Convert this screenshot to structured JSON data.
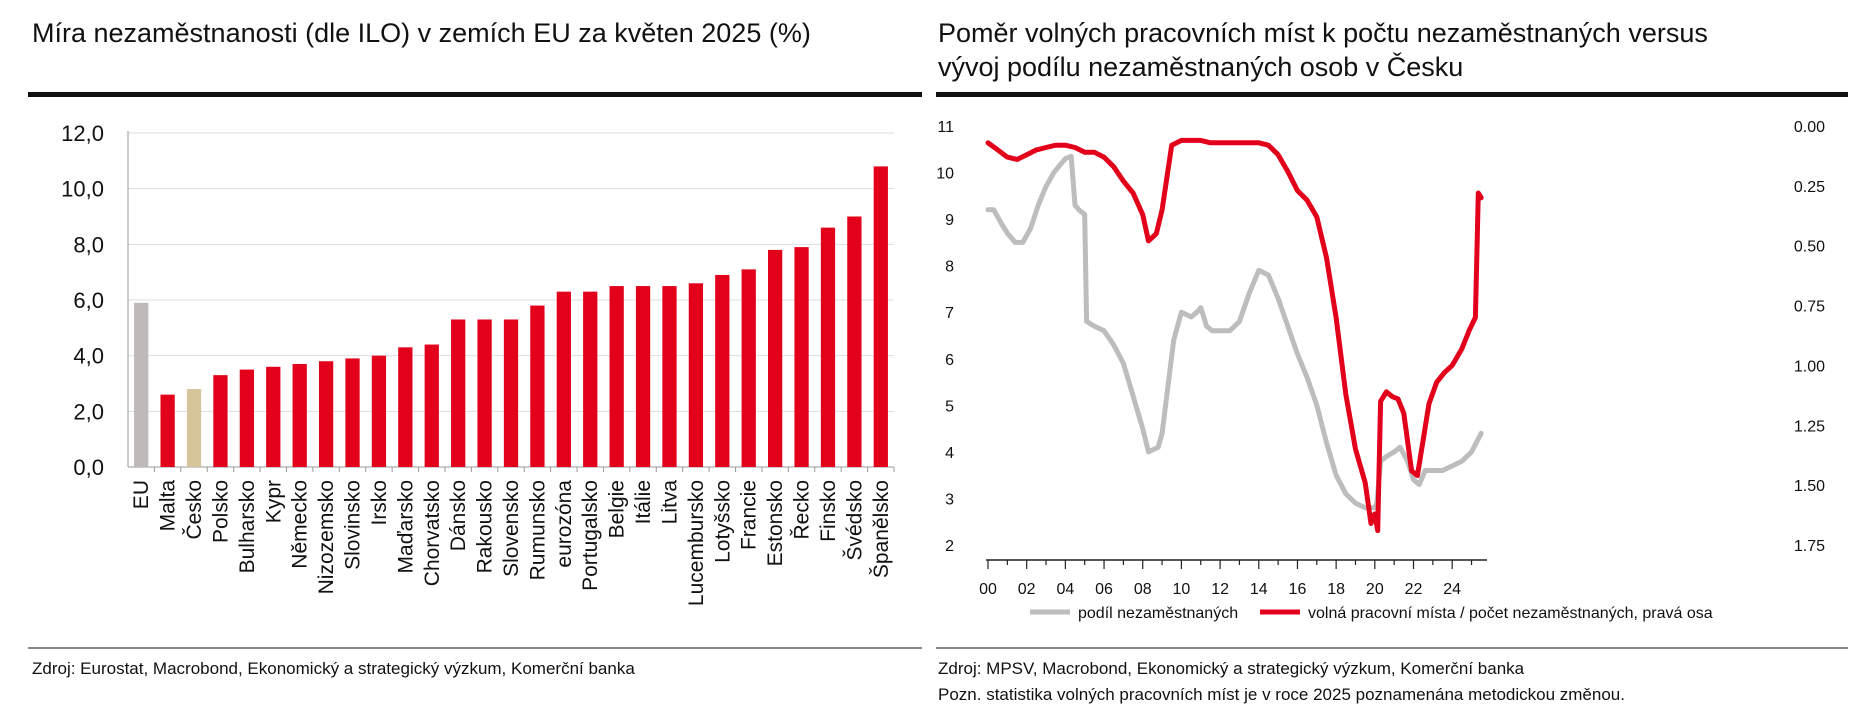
{
  "left": {
    "title": "Míra  nezaměstnanosti (dle ILO) v zemích EU za květen 2025 (%)",
    "source": "Zdroj: Eurostat, Macrobond, Ekonomický a strategický výzkum, Komerční banka",
    "colors": {
      "default": "#E3001B",
      "eu": "#BFB9BA",
      "czech": "#D6C49A"
    }
  },
  "right": {
    "title_line1": "Poměr volných pracovních míst k počtu nezaměstnaných versus",
    "title_line2": "vývoj podílu nezaměstnaných osob v Česku",
    "source": "Zdroj: MPSV, Macrobond, Ekonomický a strategický výzkum, Komerční banka",
    "note": "Pozn. statistika volných pracovních míst je v roce 2025 poznamenána metodickou změnou.",
    "colors": {
      "gray": "#BDBDBD",
      "red": "#E3001B"
    }
  },
  "chart_data": [
    {
      "type": "bar",
      "title": "Míra  nezaměstnanosti (dle ILO) v zemích EU za květen 2025 (%)",
      "xlabel": "",
      "ylabel": "",
      "ylim": [
        0,
        12
      ],
      "y_ticks": [
        "0,0",
        "2,0",
        "4,0",
        "6,0",
        "8,0",
        "10,0",
        "12,0"
      ],
      "grid": true,
      "categories": [
        "EU",
        "Malta",
        "Česko",
        "Polsko",
        "Bulharsko",
        "Kypr",
        "Německo",
        "Nizozemsko",
        "Slovinsko",
        "Irsko",
        "Maďarsko",
        "Chorvatsko",
        "Dánsko",
        "Rakousko",
        "Slovensko",
        "Rumunsko",
        "eurozóna",
        "Portugalsko",
        "Belgie",
        "Itálie",
        "Litva",
        "Lucembursko",
        "Lotyšsko",
        "Francie",
        "Estonsko",
        "Řecko",
        "Finsko",
        "Švédsko",
        "Španělsko"
      ],
      "values": [
        5.9,
        2.6,
        2.8,
        3.3,
        3.5,
        3.6,
        3.7,
        3.8,
        3.9,
        4.0,
        4.3,
        4.4,
        5.3,
        5.3,
        5.3,
        5.8,
        6.3,
        6.3,
        6.5,
        6.5,
        6.5,
        6.6,
        6.9,
        7.1,
        7.8,
        7.9,
        8.6,
        9.0,
        10.8
      ]
    },
    {
      "type": "line",
      "title": "Poměr volných pracovních míst k počtu nezaměstnaných versus vývoj podílu nezaměstnaných osob v Česku",
      "x_ticks": [
        "00",
        "02",
        "04",
        "06",
        "08",
        "10",
        "12",
        "14",
        "16",
        "18",
        "20",
        "22",
        "24"
      ],
      "x_range": [
        2000,
        2025.8
      ],
      "left_axis": {
        "ylim": [
          2,
          11
        ],
        "ticks": [
          "2",
          "3",
          "4",
          "5",
          "6",
          "7",
          "8",
          "9",
          "10",
          "11"
        ]
      },
      "right_axis": {
        "ylim": [
          1.75,
          0.0
        ],
        "inverted": true,
        "ticks": [
          "0.00",
          "0.25",
          "0.50",
          "0.75",
          "1.00",
          "1.25",
          "1.50",
          "1.75"
        ]
      },
      "legend_placement": "bottom",
      "series": [
        {
          "name": "podíl nezaměstnaných",
          "axis": "left",
          "color": "#BDBDBD",
          "x": [
            2000.0,
            2000.3,
            2000.7,
            2001.0,
            2001.4,
            2001.8,
            2002.2,
            2002.6,
            2003.0,
            2003.4,
            2003.8,
            2004.0,
            2004.3,
            2004.5,
            2004.7,
            2005.0,
            2005.1,
            2005.5,
            2006.0,
            2006.5,
            2007.0,
            2007.5,
            2008.0,
            2008.3,
            2008.8,
            2009.0,
            2009.3,
            2009.6,
            2010.0,
            2010.5,
            2010.8,
            2011.0,
            2011.3,
            2011.6,
            2012.0,
            2012.5,
            2013.0,
            2013.5,
            2014.0,
            2014.5,
            2015.0,
            2015.5,
            2016.0,
            2016.5,
            2017.0,
            2017.5,
            2018.0,
            2018.5,
            2019.0,
            2019.5,
            2020.0,
            2020.1,
            2020.3,
            2020.6,
            2021.0,
            2021.3,
            2021.7,
            2022.0,
            2022.3,
            2022.6,
            2023.0,
            2023.5,
            2024.0,
            2024.5,
            2025.0,
            2025.5
          ],
          "values": [
            9.2,
            9.2,
            8.9,
            8.7,
            8.5,
            8.5,
            8.8,
            9.3,
            9.7,
            10.0,
            10.2,
            10.3,
            10.35,
            9.3,
            9.2,
            9.1,
            6.8,
            6.7,
            6.6,
            6.3,
            5.9,
            5.2,
            4.5,
            4.0,
            4.1,
            4.4,
            5.4,
            6.4,
            7.0,
            6.9,
            7.0,
            7.1,
            6.7,
            6.6,
            6.6,
            6.6,
            6.8,
            7.4,
            7.9,
            7.8,
            7.3,
            6.7,
            6.1,
            5.6,
            5.0,
            4.2,
            3.5,
            3.1,
            2.9,
            2.8,
            2.8,
            2.9,
            3.8,
            3.9,
            4.0,
            4.1,
            3.8,
            3.4,
            3.3,
            3.6,
            3.6,
            3.6,
            3.7,
            3.8,
            4.0,
            4.4
          ]
        },
        {
          "name": "volná pracovní místa / počet nezaměstnaných, pravá osa",
          "axis": "right",
          "color": "#E3001B",
          "x": [
            2000.0,
            2000.5,
            2001.0,
            2001.5,
            2002.0,
            2002.5,
            2003.0,
            2003.5,
            2004.0,
            2004.5,
            2005.0,
            2005.5,
            2006.0,
            2006.5,
            2007.0,
            2007.5,
            2008.0,
            2008.3,
            2008.7,
            2009.0,
            2009.5,
            2010.0,
            2010.5,
            2011.0,
            2011.5,
            2012.0,
            2012.5,
            2013.0,
            2013.5,
            2014.0,
            2014.5,
            2015.0,
            2015.5,
            2016.0,
            2016.5,
            2017.0,
            2017.5,
            2018.0,
            2018.5,
            2019.0,
            2019.5,
            2019.8,
            2020.0,
            2020.15,
            2020.3,
            2020.6,
            2020.9,
            2021.2,
            2021.5,
            2021.9,
            2022.2,
            2022.5,
            2022.8,
            2023.2,
            2023.6,
            2024.0,
            2024.5,
            2024.9,
            2025.2,
            2025.35,
            2025.5
          ],
          "values": [
            0.07,
            0.1,
            0.13,
            0.14,
            0.12,
            0.1,
            0.09,
            0.08,
            0.08,
            0.09,
            0.11,
            0.11,
            0.13,
            0.17,
            0.23,
            0.28,
            0.37,
            0.48,
            0.45,
            0.35,
            0.08,
            0.06,
            0.06,
            0.06,
            0.07,
            0.07,
            0.07,
            0.07,
            0.07,
            0.07,
            0.08,
            0.12,
            0.19,
            0.27,
            0.31,
            0.38,
            0.55,
            0.8,
            1.12,
            1.35,
            1.49,
            1.66,
            1.62,
            1.69,
            1.15,
            1.11,
            1.13,
            1.14,
            1.2,
            1.44,
            1.46,
            1.31,
            1.16,
            1.07,
            1.03,
            1.0,
            0.93,
            0.85,
            0.8,
            0.28,
            0.3
          ]
        }
      ]
    }
  ]
}
